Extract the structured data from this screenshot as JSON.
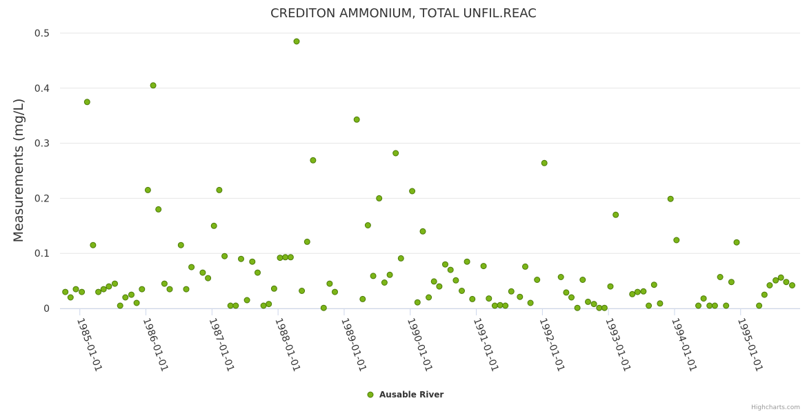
{
  "chart_data": {
    "type": "scatter",
    "title": "CREDITON AMMONIUM, TOTAL UNFIL.REAC",
    "xlabel": "",
    "ylabel": "Measurements (mg/L)",
    "ylim": [
      0,
      0.5
    ],
    "xlim": [
      1984.7,
      1995.9
    ],
    "yticks": [
      0,
      0.1,
      0.2,
      0.3,
      0.4,
      0.5
    ],
    "ytick_labels": [
      "0",
      "0.1",
      "0.2",
      "0.3",
      "0.4",
      "0.5"
    ],
    "xticks": [
      1985,
      1986,
      1987,
      1988,
      1989,
      1990,
      1991,
      1992,
      1993,
      1994,
      1995
    ],
    "xtick_labels": [
      "1985-01-01",
      "1986-01-01",
      "1987-01-01",
      "1988-01-01",
      "1989-01-01",
      "1990-01-01",
      "1991-01-01",
      "1992-01-01",
      "1993-01-01",
      "1994-01-01",
      "1995-01-01"
    ],
    "grid": true,
    "legend": "bottom-center",
    "series": [
      {
        "name": "Ausable River",
        "color": "#7cb518",
        "points": [
          [
            1984.78,
            0.03
          ],
          [
            1984.86,
            0.02
          ],
          [
            1984.94,
            0.035
          ],
          [
            1985.03,
            0.03
          ],
          [
            1985.11,
            0.375
          ],
          [
            1985.2,
            0.115
          ],
          [
            1985.28,
            0.03
          ],
          [
            1985.36,
            0.035
          ],
          [
            1985.44,
            0.04
          ],
          [
            1985.53,
            0.045
          ],
          [
            1985.61,
            0.005
          ],
          [
            1985.69,
            0.02
          ],
          [
            1985.78,
            0.025
          ],
          [
            1985.86,
            0.01
          ],
          [
            1985.94,
            0.035
          ],
          [
            1986.03,
            0.215
          ],
          [
            1986.11,
            0.405
          ],
          [
            1986.19,
            0.18
          ],
          [
            1986.28,
            0.045
          ],
          [
            1986.36,
            0.035
          ],
          [
            1986.53,
            0.115
          ],
          [
            1986.61,
            0.035
          ],
          [
            1986.69,
            0.075
          ],
          [
            1986.86,
            0.065
          ],
          [
            1986.94,
            0.055
          ],
          [
            1987.03,
            0.15
          ],
          [
            1987.11,
            0.215
          ],
          [
            1987.19,
            0.095
          ],
          [
            1987.28,
            0.005
          ],
          [
            1987.36,
            0.005
          ],
          [
            1987.44,
            0.09
          ],
          [
            1987.53,
            0.015
          ],
          [
            1987.61,
            0.085
          ],
          [
            1987.69,
            0.065
          ],
          [
            1987.78,
            0.005
          ],
          [
            1987.86,
            0.008
          ],
          [
            1987.94,
            0.036
          ],
          [
            1988.03,
            0.092
          ],
          [
            1988.11,
            0.093
          ],
          [
            1988.19,
            0.093
          ],
          [
            1988.28,
            0.485
          ],
          [
            1988.36,
            0.032
          ],
          [
            1988.44,
            0.121
          ],
          [
            1988.53,
            0.269
          ],
          [
            1988.69,
            0.001
          ],
          [
            1988.78,
            0.045
          ],
          [
            1988.86,
            0.03
          ],
          [
            1989.19,
            0.343
          ],
          [
            1989.28,
            0.017
          ],
          [
            1989.36,
            0.151
          ],
          [
            1989.44,
            0.059
          ],
          [
            1989.53,
            0.2
          ],
          [
            1989.61,
            0.047
          ],
          [
            1989.69,
            0.061
          ],
          [
            1989.78,
            0.282
          ],
          [
            1989.86,
            0.091
          ],
          [
            1990.03,
            0.213
          ],
          [
            1990.11,
            0.011
          ],
          [
            1990.19,
            0.14
          ],
          [
            1990.28,
            0.02
          ],
          [
            1990.36,
            0.049
          ],
          [
            1990.44,
            0.04
          ],
          [
            1990.53,
            0.08
          ],
          [
            1990.61,
            0.07
          ],
          [
            1990.69,
            0.051
          ],
          [
            1990.78,
            0.032
          ],
          [
            1990.86,
            0.085
          ],
          [
            1990.94,
            0.017
          ],
          [
            1991.11,
            0.077
          ],
          [
            1991.19,
            0.018
          ],
          [
            1991.28,
            0.005
          ],
          [
            1991.36,
            0.006
          ],
          [
            1991.44,
            0.005
          ],
          [
            1991.53,
            0.031
          ],
          [
            1991.66,
            0.021
          ],
          [
            1991.74,
            0.076
          ],
          [
            1991.82,
            0.01
          ],
          [
            1991.92,
            0.052
          ],
          [
            1992.03,
            0.264
          ],
          [
            1992.28,
            0.057
          ],
          [
            1992.36,
            0.029
          ],
          [
            1992.44,
            0.02
          ],
          [
            1992.53,
            0.001
          ],
          [
            1992.61,
            0.052
          ],
          [
            1992.69,
            0.012
          ],
          [
            1992.78,
            0.008
          ],
          [
            1992.86,
            0.001
          ],
          [
            1992.94,
            0.001
          ],
          [
            1993.03,
            0.04
          ],
          [
            1993.11,
            0.17
          ],
          [
            1993.36,
            0.026
          ],
          [
            1993.44,
            0.03
          ],
          [
            1993.53,
            0.031
          ],
          [
            1993.61,
            0.005
          ],
          [
            1993.69,
            0.043
          ],
          [
            1993.78,
            0.009
          ],
          [
            1993.94,
            0.199
          ],
          [
            1994.03,
            0.124
          ],
          [
            1994.36,
            0.005
          ],
          [
            1994.44,
            0.018
          ],
          [
            1994.53,
            0.005
          ],
          [
            1994.61,
            0.005
          ],
          [
            1994.69,
            0.057
          ],
          [
            1994.78,
            0.005
          ],
          [
            1994.86,
            0.048
          ],
          [
            1994.94,
            0.12
          ],
          [
            1995.28,
            0.005
          ],
          [
            1995.36,
            0.025
          ],
          [
            1995.44,
            0.042
          ],
          [
            1995.53,
            0.051
          ],
          [
            1995.61,
            0.056
          ],
          [
            1995.69,
            0.048
          ],
          [
            1995.78,
            0.042
          ]
        ]
      }
    ],
    "credits": "Highcharts.com"
  }
}
